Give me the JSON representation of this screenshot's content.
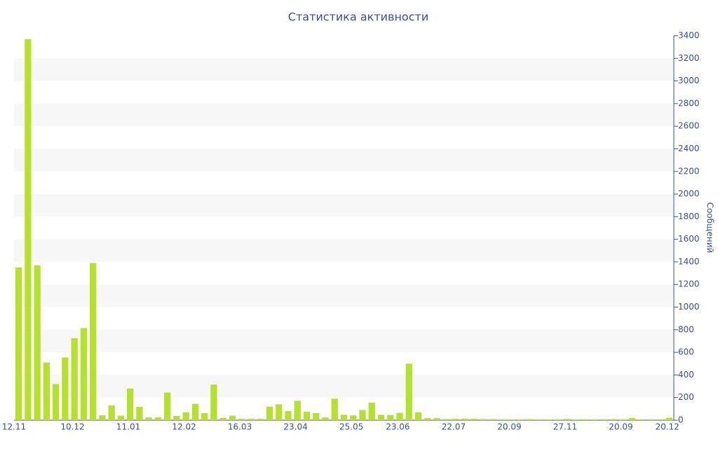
{
  "chart_data": {
    "type": "bar",
    "title": "Статистика активности",
    "y_axis_label": "Сообщений",
    "categories": [
      "12.11",
      null,
      null,
      null,
      null,
      null,
      "10.12",
      null,
      null,
      null,
      null,
      null,
      "11.01",
      null,
      null,
      null,
      null,
      null,
      "12.02",
      null,
      null,
      null,
      null,
      null,
      "16.03",
      null,
      null,
      null,
      null,
      null,
      "23.04",
      null,
      null,
      null,
      null,
      null,
      "25.05",
      null,
      null,
      null,
      null,
      "23.06",
      null,
      null,
      null,
      null,
      null,
      "22.07",
      null,
      null,
      null,
      null,
      null,
      "20.09",
      null,
      null,
      null,
      null,
      null,
      "27.11",
      null,
      null,
      null,
      null,
      null,
      "20.09",
      null,
      null,
      null,
      null,
      "20.12"
    ],
    "values": [
      1350,
      3370,
      1370,
      510,
      320,
      555,
      725,
      815,
      1390,
      43,
      130,
      40,
      280,
      118,
      25,
      25,
      245,
      37,
      70,
      145,
      62,
      315,
      20,
      40,
      12,
      12,
      12,
      120,
      140,
      80,
      172,
      75,
      62,
      25,
      190,
      48,
      42,
      90,
      155,
      48,
      46,
      65,
      500,
      70,
      18,
      18,
      10,
      12,
      14,
      12,
      10,
      10,
      8,
      8,
      8,
      10,
      8,
      8,
      8,
      12,
      8,
      8,
      8,
      8,
      10,
      8,
      20,
      8,
      8,
      8,
      22
    ],
    "color": "#b5e02e",
    "ylim": [
      0,
      3400
    ],
    "yticks": [
      0,
      200,
      400,
      600,
      800,
      1000,
      1200,
      1400,
      1600,
      1800,
      2000,
      2200,
      2400,
      2600,
      2800,
      3000,
      3200,
      3400
    ],
    "stripes": true
  }
}
